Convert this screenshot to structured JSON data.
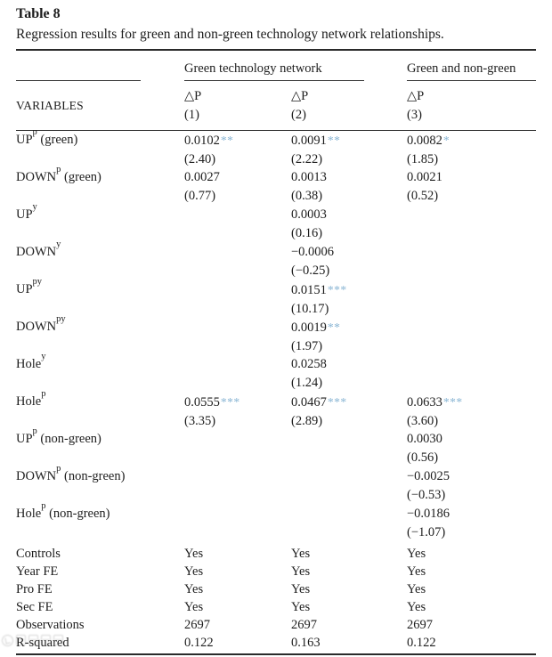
{
  "caption": {
    "label": "Table 8",
    "title": "Regression results for green and non-green technology network relationships."
  },
  "header": {
    "stub": "VARIABLES",
    "groups": [
      {
        "label": "Green technology network",
        "spans_columns": [
          1,
          2
        ]
      },
      {
        "label": "Green and non-green",
        "spans_columns": [
          3
        ]
      }
    ],
    "columns": [
      {
        "symbol": "△P",
        "number": "(1)"
      },
      {
        "symbol": "△P",
        "number": "(2)"
      },
      {
        "symbol": "△P",
        "number": "(3)"
      }
    ]
  },
  "rows": [
    {
      "label": {
        "base": "UP",
        "sup": "p",
        "rest": " (green)"
      },
      "cells": [
        {
          "coef": "0.0102",
          "stars": "**",
          "t": "(2.40)"
        },
        {
          "coef": "0.0091",
          "stars": "**",
          "t": "(2.22)"
        },
        {
          "coef": "0.0082",
          "stars": "*",
          "t": "(1.85)"
        }
      ]
    },
    {
      "label": {
        "base": "DOWN",
        "sup": "p",
        "rest": " (green)"
      },
      "cells": [
        {
          "coef": "0.0027",
          "stars": "",
          "t": "(0.77)"
        },
        {
          "coef": "0.0013",
          "stars": "",
          "t": "(0.38)"
        },
        {
          "coef": "0.0021",
          "stars": "",
          "t": "(0.52)"
        }
      ]
    },
    {
      "label": {
        "base": "UP",
        "sup": "y",
        "rest": ""
      },
      "cells": [
        null,
        {
          "coef": "0.0003",
          "stars": "",
          "t": "(0.16)"
        },
        null
      ]
    },
    {
      "label": {
        "base": "DOWN",
        "sup": "y",
        "rest": ""
      },
      "cells": [
        null,
        {
          "coef": "−0.0006",
          "stars": "",
          "t": "(−0.25)"
        },
        null
      ]
    },
    {
      "label": {
        "base": "UP",
        "sup": "py",
        "rest": ""
      },
      "cells": [
        null,
        {
          "coef": "0.0151",
          "stars": "***",
          "t": "(10.17)"
        },
        null
      ]
    },
    {
      "label": {
        "base": "DOWN",
        "sup": "py",
        "rest": ""
      },
      "cells": [
        null,
        {
          "coef": "0.0019",
          "stars": "**",
          "t": "(1.97)"
        },
        null
      ]
    },
    {
      "label": {
        "base": "Hole",
        "sup": "y",
        "rest": ""
      },
      "cells": [
        null,
        {
          "coef": "0.0258",
          "stars": "",
          "t": "(1.24)"
        },
        null
      ]
    },
    {
      "label": {
        "base": "Hole",
        "sup": "p",
        "rest": ""
      },
      "cells": [
        {
          "coef": "0.0555",
          "stars": "***",
          "t": "(3.35)"
        },
        {
          "coef": "0.0467",
          "stars": "***",
          "t": "(2.89)"
        },
        {
          "coef": "0.0633",
          "stars": "***",
          "t": "(3.60)"
        }
      ]
    },
    {
      "label": {
        "base": "UP",
        "sup": "p",
        "rest": " (non-green)"
      },
      "cells": [
        null,
        null,
        {
          "coef": "0.0030",
          "stars": "",
          "t": "(0.56)"
        }
      ]
    },
    {
      "label": {
        "base": "DOWN",
        "sup": "p",
        "rest": " (non-green)"
      },
      "cells": [
        null,
        null,
        {
          "coef": "−0.0025",
          "stars": "",
          "t": "(−0.53)"
        }
      ]
    },
    {
      "label": {
        "base": "Hole",
        "sup": "p",
        "rest": " (non-green)"
      },
      "cells": [
        null,
        null,
        {
          "coef": "−0.0186",
          "stars": "",
          "t": "(−1.07)"
        }
      ]
    }
  ],
  "footer": [
    {
      "label": "Controls",
      "values": [
        "Yes",
        "Yes",
        "Yes"
      ]
    },
    {
      "label": "Year FE",
      "values": [
        "Yes",
        "Yes",
        "Yes"
      ]
    },
    {
      "label": "Pro FE",
      "values": [
        "Yes",
        "Yes",
        "Yes"
      ]
    },
    {
      "label": "Sec FE",
      "values": [
        "Yes",
        "Yes",
        "Yes"
      ]
    },
    {
      "label": "Observations",
      "values": [
        "2697",
        "2697",
        "2697"
      ]
    },
    {
      "label": "R-squared",
      "values": [
        "0.122",
        "0.163",
        "0.122"
      ]
    }
  ],
  "colors": {
    "text": "#1d1d1d",
    "rule": "#2a2a2a",
    "significance_star": "#8ab6d4",
    "background": "#ffffff"
  }
}
